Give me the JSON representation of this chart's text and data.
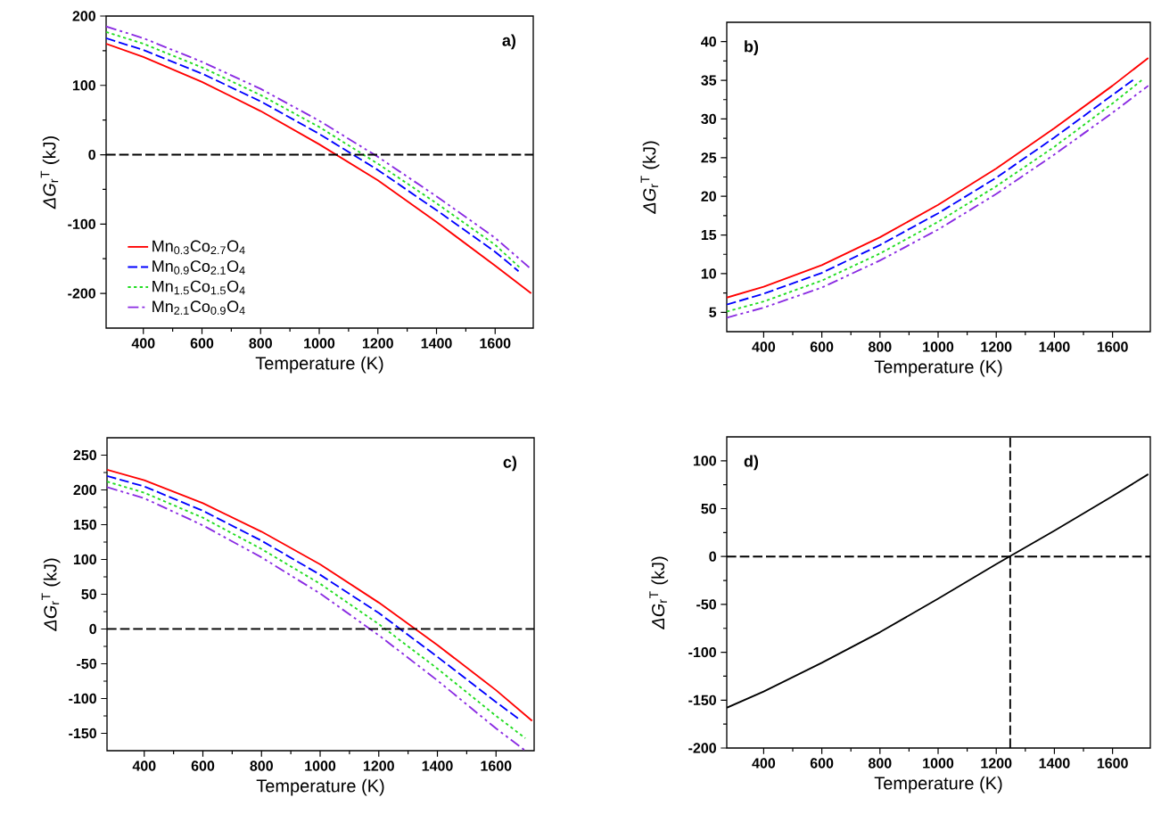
{
  "chart_data": [
    {
      "type": "line",
      "xlabel": "Temperature (K)",
      "ylabel": "*ΔG*$_{r}$$^{T}$ (kJ)",
      "xlim": [
        273,
        1730
      ],
      "ylim": [
        -250,
        200
      ],
      "xticks": [
        400,
        600,
        800,
        1000,
        1200,
        1400,
        1600
      ],
      "yticks": [
        -200,
        -100,
        0,
        100,
        200
      ],
      "legend": "bottom left",
      "annotations": [
        "a)"
      ],
      "ref_lines": [
        {
          "axis": "y",
          "value": 0,
          "color": "#000000",
          "line_style": "dashed"
        }
      ],
      "series": [
        {
          "name": "Mn$_{0.3}$Co$_{2.7}$O$_{4}$",
          "color": "#ff0000",
          "line_style": "solid",
          "x": [
            273,
            400,
            600,
            800,
            1000,
            1200,
            1400,
            1600,
            1723
          ],
          "values": [
            160,
            141,
            105,
            63,
            15,
            -37,
            -97,
            -160,
            -200
          ]
        },
        {
          "name": "Mn$_{0.9}$Co$_{2.1}$O$_{4}$",
          "color": "#0000ff",
          "line_style": "dashed",
          "x": [
            273,
            400,
            600,
            800,
            1000,
            1200,
            1400,
            1600,
            1680
          ],
          "values": [
            168,
            151,
            117,
            77,
            30,
            -22,
            -80,
            -140,
            -168
          ]
        },
        {
          "name": "Mn$_{1.5}$Co$_{1.5}$O$_{4}$",
          "color": "#22dd22",
          "line_style": "dotted",
          "x": [
            273,
            400,
            600,
            800,
            1000,
            1200,
            1400,
            1600,
            1690
          ],
          "values": [
            177,
            160,
            126,
            86,
            40,
            -13,
            -70,
            -130,
            -165
          ]
        },
        {
          "name": "Mn$_{2.1}$Co$_{0.9}$O$_{4}$",
          "color": "#8a2be2",
          "line_style": "dashdotdotted",
          "x": [
            273,
            400,
            600,
            800,
            1000,
            1200,
            1400,
            1600,
            1723
          ],
          "values": [
            185,
            168,
            134,
            95,
            49,
            -3,
            -60,
            -120,
            -165
          ]
        }
      ]
    },
    {
      "type": "line",
      "xlabel": "Temperature (K)",
      "ylabel": "*ΔG*$_{r}$$^{T}$ (kJ)",
      "xlim": [
        273,
        1730
      ],
      "ylim": [
        2.5,
        42.5
      ],
      "xticks": [
        400,
        600,
        800,
        1000,
        1200,
        1400,
        1600
      ],
      "yticks": [
        5,
        10,
        15,
        20,
        25,
        30,
        35,
        40
      ],
      "annotations": [
        "b)"
      ],
      "series": [
        {
          "color": "#ff0000",
          "line_style": "solid",
          "x": [
            273,
            400,
            600,
            800,
            1000,
            1200,
            1400,
            1600,
            1723
          ],
          "values": [
            6.9,
            8.3,
            11.1,
            14.7,
            18.9,
            23.6,
            28.8,
            34.3,
            37.9
          ]
        },
        {
          "color": "#0000ff",
          "line_style": "dashed",
          "x": [
            273,
            400,
            600,
            800,
            1000,
            1200,
            1400,
            1600,
            1680
          ],
          "values": [
            6.0,
            7.4,
            10.1,
            13.7,
            17.8,
            22.4,
            27.6,
            33.1,
            35.3
          ]
        },
        {
          "color": "#22dd22",
          "line_style": "dotted",
          "x": [
            273,
            400,
            600,
            800,
            1000,
            1200,
            1400,
            1600,
            1700
          ],
          "values": [
            5.1,
            6.4,
            9.1,
            12.6,
            16.7,
            21.3,
            26.4,
            32.0,
            35.0
          ]
        },
        {
          "color": "#8a2be2",
          "line_style": "dashdotdotted",
          "x": [
            273,
            400,
            600,
            800,
            1000,
            1200,
            1400,
            1600,
            1723
          ],
          "values": [
            4.3,
            5.6,
            8.2,
            11.7,
            15.7,
            20.3,
            25.4,
            30.8,
            34.3
          ]
        }
      ]
    },
    {
      "type": "line",
      "xlabel": "Temperature (K)",
      "ylabel": "*ΔG*$_{r}$$^{T}$ (kJ)",
      "xlim": [
        273,
        1730
      ],
      "ylim": [
        -175,
        275
      ],
      "xticks": [
        400,
        600,
        800,
        1000,
        1200,
        1400,
        1600
      ],
      "yticks": [
        -150,
        -100,
        -50,
        0,
        50,
        100,
        150,
        200,
        250
      ],
      "annotations": [
        "c)"
      ],
      "ref_lines": [
        {
          "axis": "y",
          "value": 0,
          "color": "#000000",
          "line_style": "dashed"
        }
      ],
      "series": [
        {
          "color": "#ff0000",
          "line_style": "solid",
          "x": [
            273,
            400,
            600,
            800,
            1000,
            1200,
            1400,
            1600,
            1723
          ],
          "values": [
            229,
            214,
            181,
            140,
            93,
            38,
            -23,
            -88,
            -132
          ]
        },
        {
          "color": "#0000ff",
          "line_style": "dashed",
          "x": [
            273,
            400,
            600,
            800,
            1000,
            1200,
            1400,
            1600,
            1680
          ],
          "values": [
            220,
            205,
            170,
            127,
            78,
            23,
            -40,
            -105,
            -130
          ]
        },
        {
          "color": "#22dd22",
          "line_style": "dotted",
          "x": [
            273,
            400,
            600,
            800,
            1000,
            1200,
            1400,
            1600,
            1700
          ],
          "values": [
            212,
            196,
            160,
            115,
            65,
            7,
            -57,
            -125,
            -157
          ]
        },
        {
          "color": "#8a2be2",
          "line_style": "dashdotdotted",
          "x": [
            273,
            400,
            600,
            800,
            1000,
            1200,
            1400,
            1600,
            1700
          ],
          "values": [
            204,
            188,
            149,
            103,
            51,
            -9,
            -74,
            -143,
            -175
          ]
        }
      ]
    },
    {
      "type": "line",
      "xlabel": "Temperature (K)",
      "ylabel": "*ΔG*$_{r}$$^{T}$ (kJ)",
      "xlim": [
        273,
        1730
      ],
      "ylim": [
        -200,
        125
      ],
      "xticks": [
        400,
        600,
        800,
        1000,
        1200,
        1400,
        1600
      ],
      "yticks": [
        -200,
        -150,
        -100,
        -50,
        0,
        50,
        100
      ],
      "annotations": [
        "d)"
      ],
      "ref_lines": [
        {
          "axis": "y",
          "value": 0,
          "color": "#000000",
          "line_style": "dashed"
        },
        {
          "axis": "x",
          "value": 1248,
          "color": "#000000",
          "line_style": "dashed"
        }
      ],
      "series": [
        {
          "color": "#000000",
          "line_style": "solid",
          "x": [
            273,
            400,
            600,
            800,
            1000,
            1200,
            1400,
            1600,
            1723
          ],
          "values": [
            -158,
            -141,
            -111,
            -79,
            -44,
            -8,
            27,
            63,
            86
          ]
        }
      ]
    }
  ]
}
